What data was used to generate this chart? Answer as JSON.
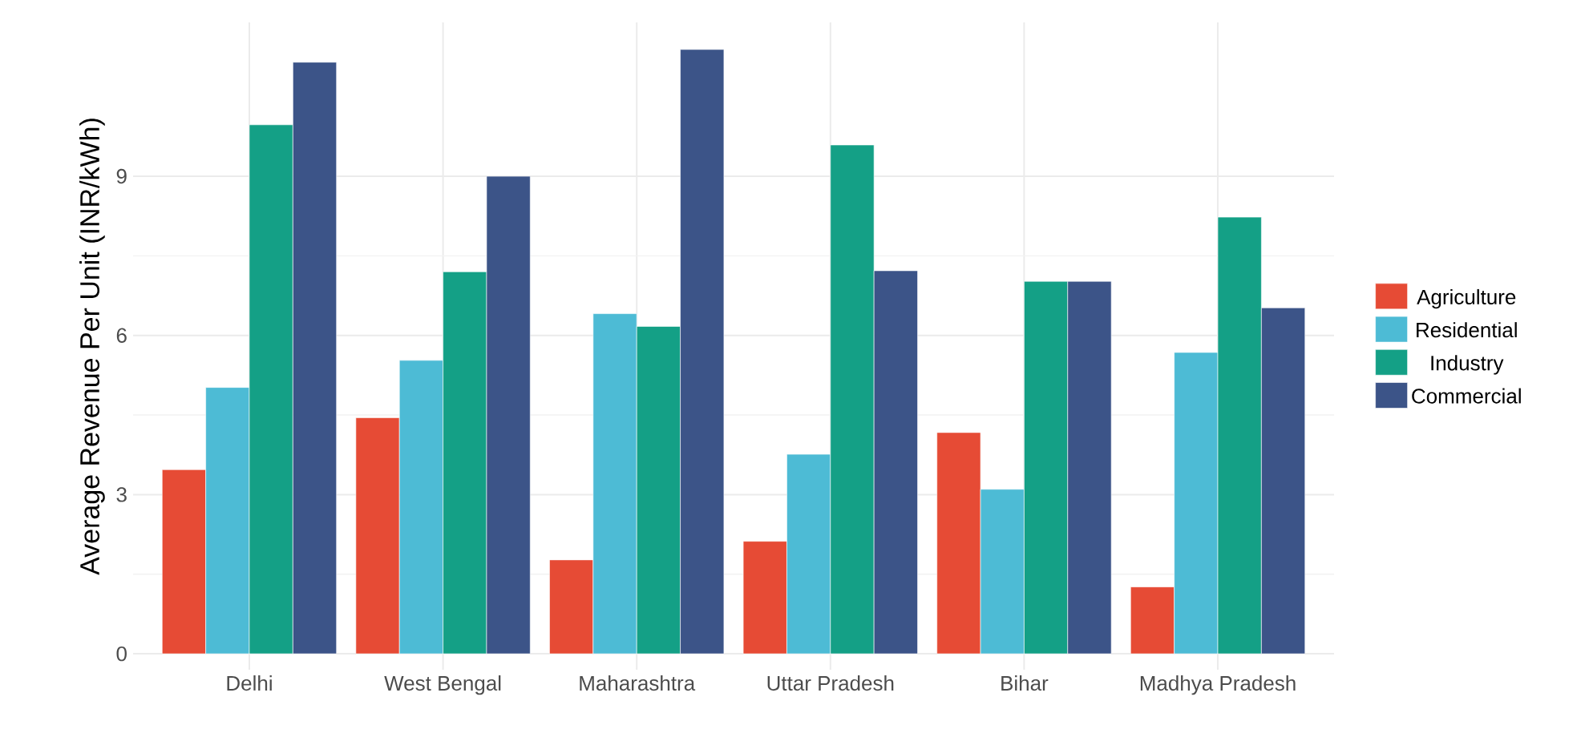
{
  "chart_data": {
    "type": "bar",
    "ylabel": "Average Revenue Per Unit (INR/kWh)",
    "categories": [
      "Delhi",
      "West Bengal",
      "Maharashtra",
      "Uttar Pradesh",
      "Bihar",
      "Madhya Pradesh"
    ],
    "series": [
      {
        "name": "Agriculture",
        "color": "#e64b35",
        "values": [
          3.47,
          4.45,
          1.77,
          2.12,
          4.17,
          1.26
        ]
      },
      {
        "name": "Residential",
        "color": "#4dbbd5",
        "values": [
          5.02,
          5.53,
          6.41,
          3.76,
          3.1,
          5.68
        ]
      },
      {
        "name": "Industry",
        "color": "#14a086",
        "values": [
          9.97,
          7.2,
          6.17,
          9.59,
          7.02,
          8.23
        ]
      },
      {
        "name": "Commercial",
        "color": "#3c5488",
        "values": [
          11.15,
          9.0,
          11.39,
          7.22,
          7.02,
          6.52
        ]
      }
    ],
    "ylim": [
      -0.3,
      11.9
    ],
    "yticks": [
      0,
      3,
      6,
      9
    ],
    "grid": true,
    "legend": "right"
  }
}
